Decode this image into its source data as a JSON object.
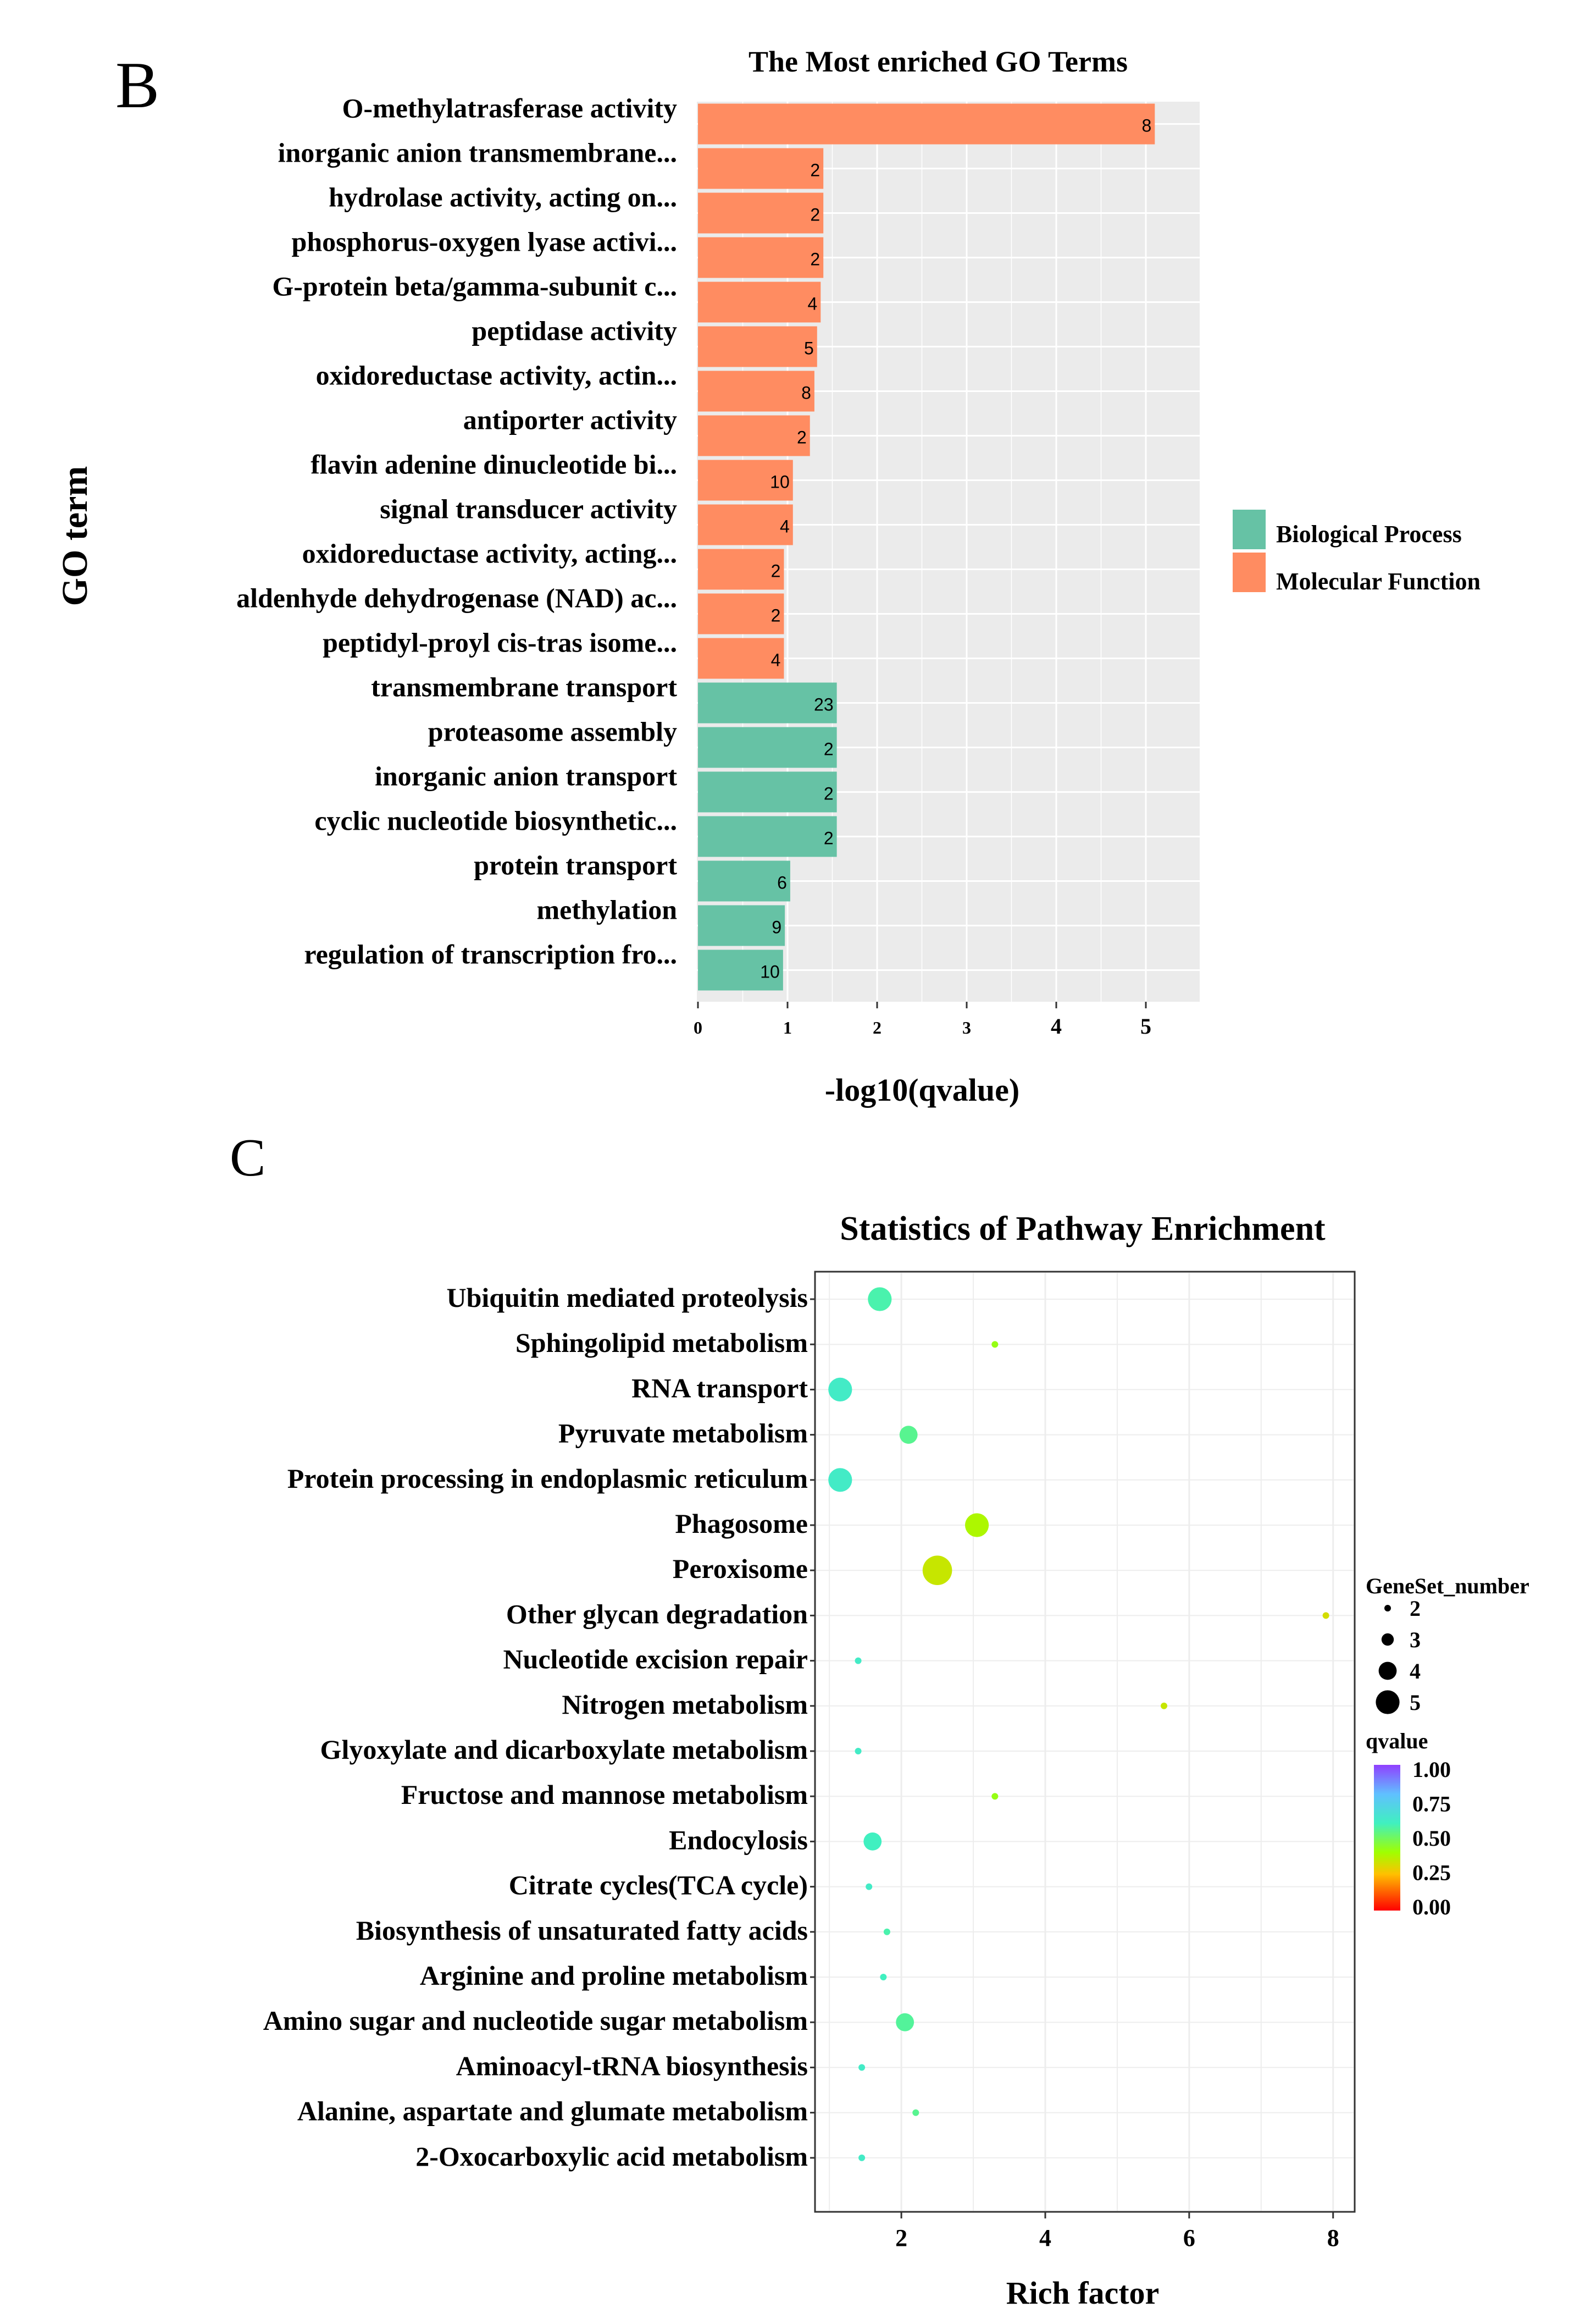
{
  "figure": {
    "panel_b_letter": "B",
    "panel_c_letter": "C"
  },
  "colors": {
    "molecular_function": "#FF8C61",
    "biological_process": "#66C2A5",
    "panel_bg": "#EBEBEB",
    "grid": "#FFFFFF"
  },
  "chart_data": [
    {
      "type": "bar",
      "orientation": "horizontal",
      "title": "The Most enriched GO Terms",
      "xlabel": "-log10(qvalue)",
      "ylabel": "GO term",
      "xlim": [
        0,
        5.45
      ],
      "xticks": [
        0,
        1,
        2,
        3,
        4,
        5
      ],
      "grid": true,
      "legend": {
        "position": "right",
        "entries": [
          {
            "name": "Biological Process",
            "color": "#66C2A5"
          },
          {
            "name": "Molecular Function",
            "color": "#FF8C61"
          }
        ]
      },
      "bars": [
        {
          "term": "O-methylatrasferase activity",
          "value": 5.1,
          "count": "8",
          "category": "Molecular Function"
        },
        {
          "term": "inorganic anion transmembrane...",
          "value": 1.4,
          "count": "2",
          "category": "Molecular Function"
        },
        {
          "term": "hydrolase activity, acting on...",
          "value": 1.4,
          "count": "2",
          "category": "Molecular Function"
        },
        {
          "term": "phosphorus-oxygen lyase activi...",
          "value": 1.4,
          "count": "2",
          "category": "Molecular Function"
        },
        {
          "term": "G-protein beta/gamma-subunit c...",
          "value": 1.37,
          "count": "4",
          "category": "Molecular Function"
        },
        {
          "term": "peptidase activity",
          "value": 1.33,
          "count": "5",
          "category": "Molecular Function"
        },
        {
          "term": "oxidoreductase activity, actin...",
          "value": 1.3,
          "count": "8",
          "category": "Molecular Function"
        },
        {
          "term": "antiporter activity",
          "value": 1.25,
          "count": "2",
          "category": "Molecular Function"
        },
        {
          "term": "flavin adenine dinucleotide bi...",
          "value": 1.06,
          "count": "10",
          "category": "Molecular Function"
        },
        {
          "term": "signal transducer activity",
          "value": 1.06,
          "count": "4",
          "category": "Molecular Function"
        },
        {
          "term": "oxidoreductase activity, acting...",
          "value": 0.96,
          "count": "2",
          "category": "Molecular Function"
        },
        {
          "term": "aldenhyde dehydrogenase (NAD) ac...",
          "value": 0.96,
          "count": "2",
          "category": "Molecular Function"
        },
        {
          "term": "peptidyl-proyl cis-tras isome...",
          "value": 0.96,
          "count": "4",
          "category": "Molecular Function"
        },
        {
          "term": "transmembrane transport",
          "value": 1.55,
          "count": "23",
          "category": "Biological Process"
        },
        {
          "term": "proteasome assembly",
          "value": 1.55,
          "count": "2",
          "category": "Biological Process"
        },
        {
          "term": "inorganic anion transport",
          "value": 1.55,
          "count": "2",
          "category": "Biological Process"
        },
        {
          "term": "cyclic nucleotide biosynthetic...",
          "value": 1.55,
          "count": "2",
          "category": "Biological Process"
        },
        {
          "term": "protein transport",
          "value": 1.03,
          "count": "6",
          "category": "Biological Process"
        },
        {
          "term": "methylation",
          "value": 0.97,
          "count": "9",
          "category": "Biological Process"
        },
        {
          "term": "regulation of transcription fro...",
          "value": 0.95,
          "count": "10",
          "category": "Biological Process"
        }
      ]
    },
    {
      "type": "scatter",
      "title": "Statistics of Pathway Enrichment",
      "xlabel": "Rich factor",
      "ylabel": "",
      "xlim": [
        0.8,
        8.3
      ],
      "xticks": [
        2,
        4,
        6,
        8
      ],
      "grid": true,
      "size_legend": {
        "title": "GeneSet_number",
        "labels": [
          "2",
          "3",
          "4",
          "5"
        ],
        "position": "right"
      },
      "color_legend": {
        "title": "qvalue",
        "labels": [
          "1.00",
          "0.75",
          "0.50",
          "0.25",
          "0.00"
        ],
        "range": [
          0,
          1
        ],
        "position": "right"
      },
      "points": [
        {
          "pathway": "Ubiquitin mediated proteolysis",
          "x": 1.7,
          "genes": 4,
          "qvalue": 0.58
        },
        {
          "pathway": "Sphingolipid metabolism",
          "x": 3.3,
          "genes": 1,
          "qvalue": 0.42
        },
        {
          "pathway": "RNA transport",
          "x": 1.15,
          "genes": 4,
          "qvalue": 0.62
        },
        {
          "pathway": "Pyruvate metabolism",
          "x": 2.1,
          "genes": 3,
          "qvalue": 0.55
        },
        {
          "pathway": "Protein processing in endoplasmic reticulum",
          "x": 1.15,
          "genes": 4,
          "qvalue": 0.62
        },
        {
          "pathway": "Phagosome",
          "x": 3.05,
          "genes": 4,
          "qvalue": 0.38
        },
        {
          "pathway": "Peroxisome",
          "x": 2.5,
          "genes": 5,
          "qvalue": 0.34
        },
        {
          "pathway": "Other glycan degradation",
          "x": 7.9,
          "genes": 1,
          "qvalue": 0.32
        },
        {
          "pathway": "Nucleotide excision repair",
          "x": 1.4,
          "genes": 1,
          "qvalue": 0.62
        },
        {
          "pathway": "Nitrogen metabolism",
          "x": 5.65,
          "genes": 1,
          "qvalue": 0.34
        },
        {
          "pathway": "Glyoxylate and dicarboxylate metabolism",
          "x": 1.4,
          "genes": 1,
          "qvalue": 0.62
        },
        {
          "pathway": "Fructose and mannose metabolism",
          "x": 3.3,
          "genes": 1,
          "qvalue": 0.42
        },
        {
          "pathway": "Endocylosis",
          "x": 1.6,
          "genes": 3,
          "qvalue": 0.6
        },
        {
          "pathway": "Citrate cycles(TCA cycle)",
          "x": 1.55,
          "genes": 1,
          "qvalue": 0.62
        },
        {
          "pathway": "Biosynthesis of unsaturated fatty acids",
          "x": 1.8,
          "genes": 1,
          "qvalue": 0.58
        },
        {
          "pathway": "Arginine and proline metabolism",
          "x": 1.75,
          "genes": 1,
          "qvalue": 0.6
        },
        {
          "pathway": "Amino sugar and nucleotide sugar metabolism",
          "x": 2.05,
          "genes": 3,
          "qvalue": 0.56
        },
        {
          "pathway": "Aminoacyl-tRNA biosynthesis",
          "x": 1.45,
          "genes": 1,
          "qvalue": 0.62
        },
        {
          "pathway": "Alanine, aspartate and glumate metabolism",
          "x": 2.2,
          "genes": 1,
          "qvalue": 0.55
        },
        {
          "pathway": "2-Oxocarboxylic acid metabolism",
          "x": 1.45,
          "genes": 1,
          "qvalue": 0.62
        }
      ]
    }
  ]
}
